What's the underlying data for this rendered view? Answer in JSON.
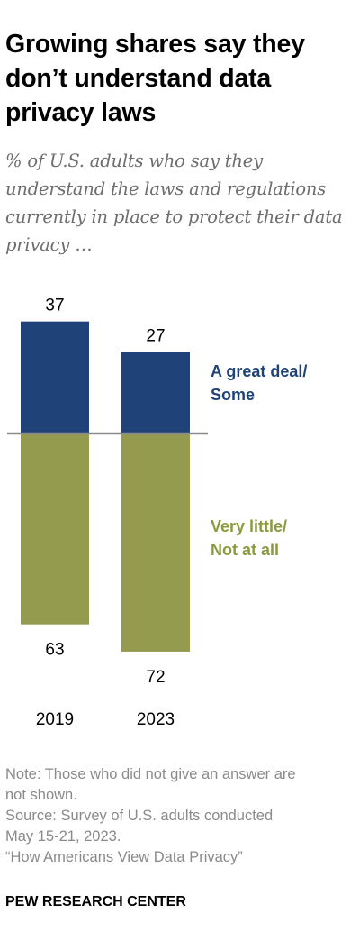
{
  "header": {
    "title": "Growing shares say they don’t understand data privacy laws",
    "subtitle": "% of U.S. adults who say they understand the laws and regulations currently in place to protect their data privacy …"
  },
  "chart_data": {
    "type": "bar",
    "stacking": "diverging",
    "categories": [
      "2019",
      "2023"
    ],
    "series": [
      {
        "name": "A great deal/ Some",
        "name_lines": [
          "A great deal/",
          "Some"
        ],
        "values": [
          37,
          27
        ],
        "color": "#1f4378",
        "label_color": "#1f4378"
      },
      {
        "name": "Very little/ Not at all",
        "name_lines": [
          "Very little/",
          "Not at all"
        ],
        "values": [
          63,
          72
        ],
        "color": "#949b4e",
        "label_color": "#8c9a3f"
      }
    ],
    "baseline_color": "#8a8a8a",
    "legend": "right"
  },
  "footer": {
    "note_line1": "Note: Those who did not give an answer are",
    "note_line2": "not shown.",
    "source_line1": "Source: Survey of U.S. adults conducted",
    "source_line2": "May 15-21, 2023.",
    "report": "“How Americans View Data Privacy”",
    "brand": "PEW RESEARCH CENTER"
  }
}
